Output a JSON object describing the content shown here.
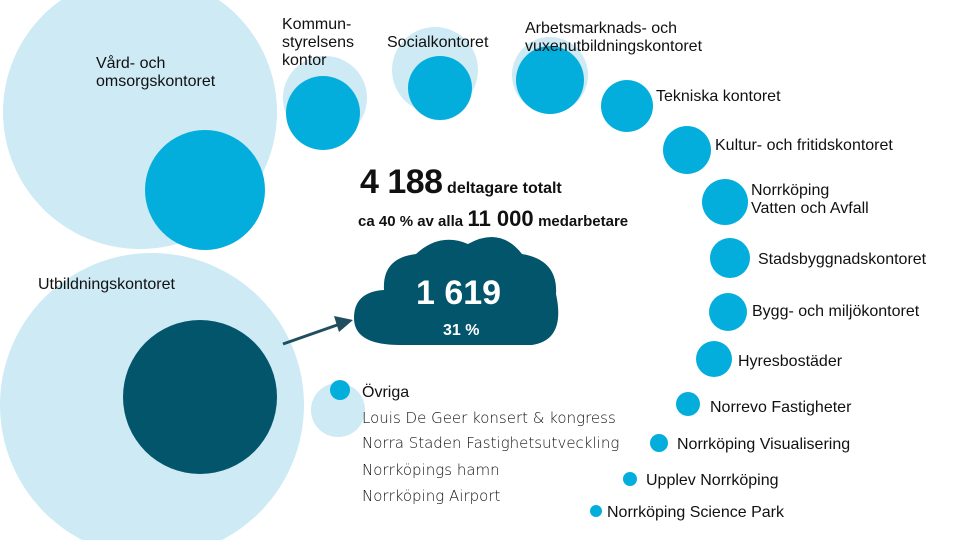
{
  "colors": {
    "light_bubble": "#cdeaf5",
    "bright_bubble": "#04aedc",
    "dark": "#02556b",
    "arrow": "#1f4e5f",
    "text": "#111111"
  },
  "units": [
    {
      "label": "Vård- och\nomsorgskontoret"
    },
    {
      "label": "Kommun-\nstyrelsens\nkontor"
    },
    {
      "label": "Socialkontoret"
    },
    {
      "label": "Arbetsmarknads- och\nvuxenutbildningskontoret"
    },
    {
      "label": "Tekniska kontoret"
    },
    {
      "label": "Kultur- och fritidskontoret"
    },
    {
      "label": "Norrköping\nVatten och Avfall"
    },
    {
      "label": "Stadsbyggnadskontoret"
    },
    {
      "label": "Utbildningskontoret"
    },
    {
      "label": "Bygg- och miljökontoret"
    },
    {
      "label": "Hyresbostäder"
    },
    {
      "label": "Norrevo Fastigheter"
    },
    {
      "label": "Norrköping Visualisering"
    },
    {
      "label": "Upplev Norrköping"
    },
    {
      "label": "Norrköping Science Park"
    }
  ],
  "ovriga": {
    "title": "Övriga",
    "items": [
      "Louis De Geer konsert & kongress",
      "Norra Staden Fastighetsutveckling",
      "Norrköpings hamn",
      "Norrköping Airport"
    ]
  },
  "summary": {
    "total_number": "4 188",
    "total_text": "deltagare totalt",
    "share_prefix": "ca 40 % av alla",
    "employees_number": "11 000",
    "employees_text": "medarbetare"
  },
  "highlight": {
    "number": "1 619",
    "percent": "31 %"
  }
}
